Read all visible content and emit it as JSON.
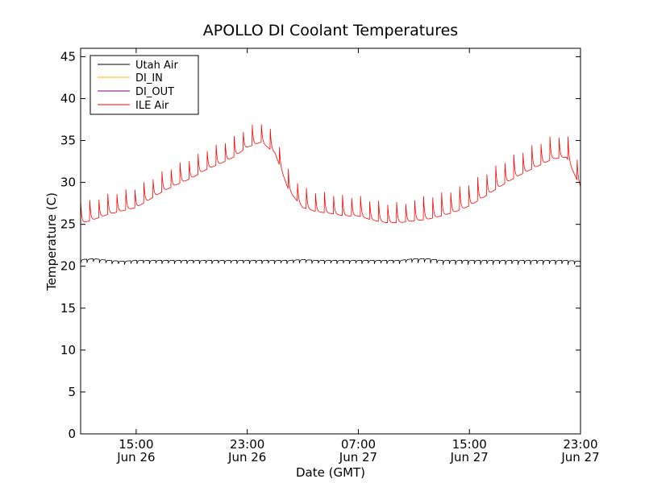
{
  "chart_data": {
    "type": "line",
    "title": "APOLLO DI Coolant Temperatures",
    "xlabel": "Date (GMT)",
    "ylabel": "Temperature (C)",
    "x_unit": "hours since Jun 26 00:00 GMT",
    "xlim": [
      11,
      47
    ],
    "ylim": [
      0,
      46
    ],
    "grid": false,
    "legend_position": "top-left",
    "yticks": [
      {
        "value": 0,
        "label": "0"
      },
      {
        "value": 5,
        "label": "5"
      },
      {
        "value": 10,
        "label": "10"
      },
      {
        "value": 15,
        "label": "15"
      },
      {
        "value": 20,
        "label": "20"
      },
      {
        "value": 25,
        "label": "25"
      },
      {
        "value": 30,
        "label": "30"
      },
      {
        "value": 35,
        "label": "35"
      },
      {
        "value": 40,
        "label": "40"
      },
      {
        "value": 45,
        "label": "45"
      }
    ],
    "xticks": [
      {
        "value": 15,
        "time": "15:00",
        "date": "Jun 26"
      },
      {
        "value": 23,
        "time": "23:00",
        "date": "Jun 26"
      },
      {
        "value": 31,
        "time": "07:00",
        "date": "Jun 27"
      },
      {
        "value": 39,
        "time": "15:00",
        "date": "Jun 27"
      },
      {
        "value": 47,
        "time": "23:00",
        "date": "Jun 27"
      }
    ],
    "series": [
      {
        "name": "Utah Air",
        "color": "#000000",
        "x": [
          11,
          12,
          13,
          14,
          15,
          16,
          17,
          18,
          19,
          20,
          21,
          22,
          23,
          24,
          25,
          26,
          27,
          28,
          29,
          30,
          31,
          32,
          33,
          34,
          35,
          36,
          37,
          38,
          39,
          40,
          41,
          42,
          43,
          44,
          45,
          46,
          47
        ],
        "y": [
          20.8,
          20.9,
          20.7,
          20.6,
          20.7,
          20.7,
          20.7,
          20.7,
          20.7,
          20.7,
          20.7,
          20.7,
          20.7,
          20.7,
          20.7,
          20.7,
          20.8,
          20.7,
          20.7,
          20.7,
          20.7,
          20.7,
          20.7,
          20.7,
          20.9,
          20.9,
          20.7,
          20.7,
          20.7,
          20.7,
          20.7,
          20.7,
          20.7,
          20.7,
          20.7,
          20.7,
          20.6
        ],
        "spikes": {
          "amplitude": -0.5,
          "period_hours": 0.45
        }
      },
      {
        "name": "DI_IN",
        "color": "#ffb000",
        "x": [],
        "y": []
      },
      {
        "name": "DI_OUT",
        "color": "#7b007b",
        "x": [],
        "y": []
      },
      {
        "name": "ILE Air",
        "color": "#ff0000",
        "x": [
          11,
          12,
          13,
          14,
          15,
          16,
          17,
          18,
          19,
          20,
          21,
          22,
          23,
          24,
          25,
          26,
          27,
          28,
          29,
          30,
          31,
          32,
          33,
          34,
          35,
          36,
          37,
          38,
          39,
          40,
          41,
          42,
          43,
          44,
          45,
          46,
          47
        ],
        "y": [
          25.1,
          25.6,
          26.2,
          26.6,
          27.0,
          28.0,
          29.0,
          29.8,
          30.5,
          31.5,
          32.2,
          33.0,
          34.2,
          34.8,
          33.5,
          29.0,
          27.0,
          26.5,
          26.3,
          26.0,
          26.0,
          25.5,
          25.2,
          25.2,
          25.4,
          25.6,
          26.0,
          26.5,
          27.2,
          28.2,
          29.3,
          30.3,
          31.2,
          32.0,
          32.8,
          33.0,
          29.4
        ],
        "spikes": {
          "amplitude": 2.8,
          "period_hours": 0.65
        }
      }
    ]
  }
}
